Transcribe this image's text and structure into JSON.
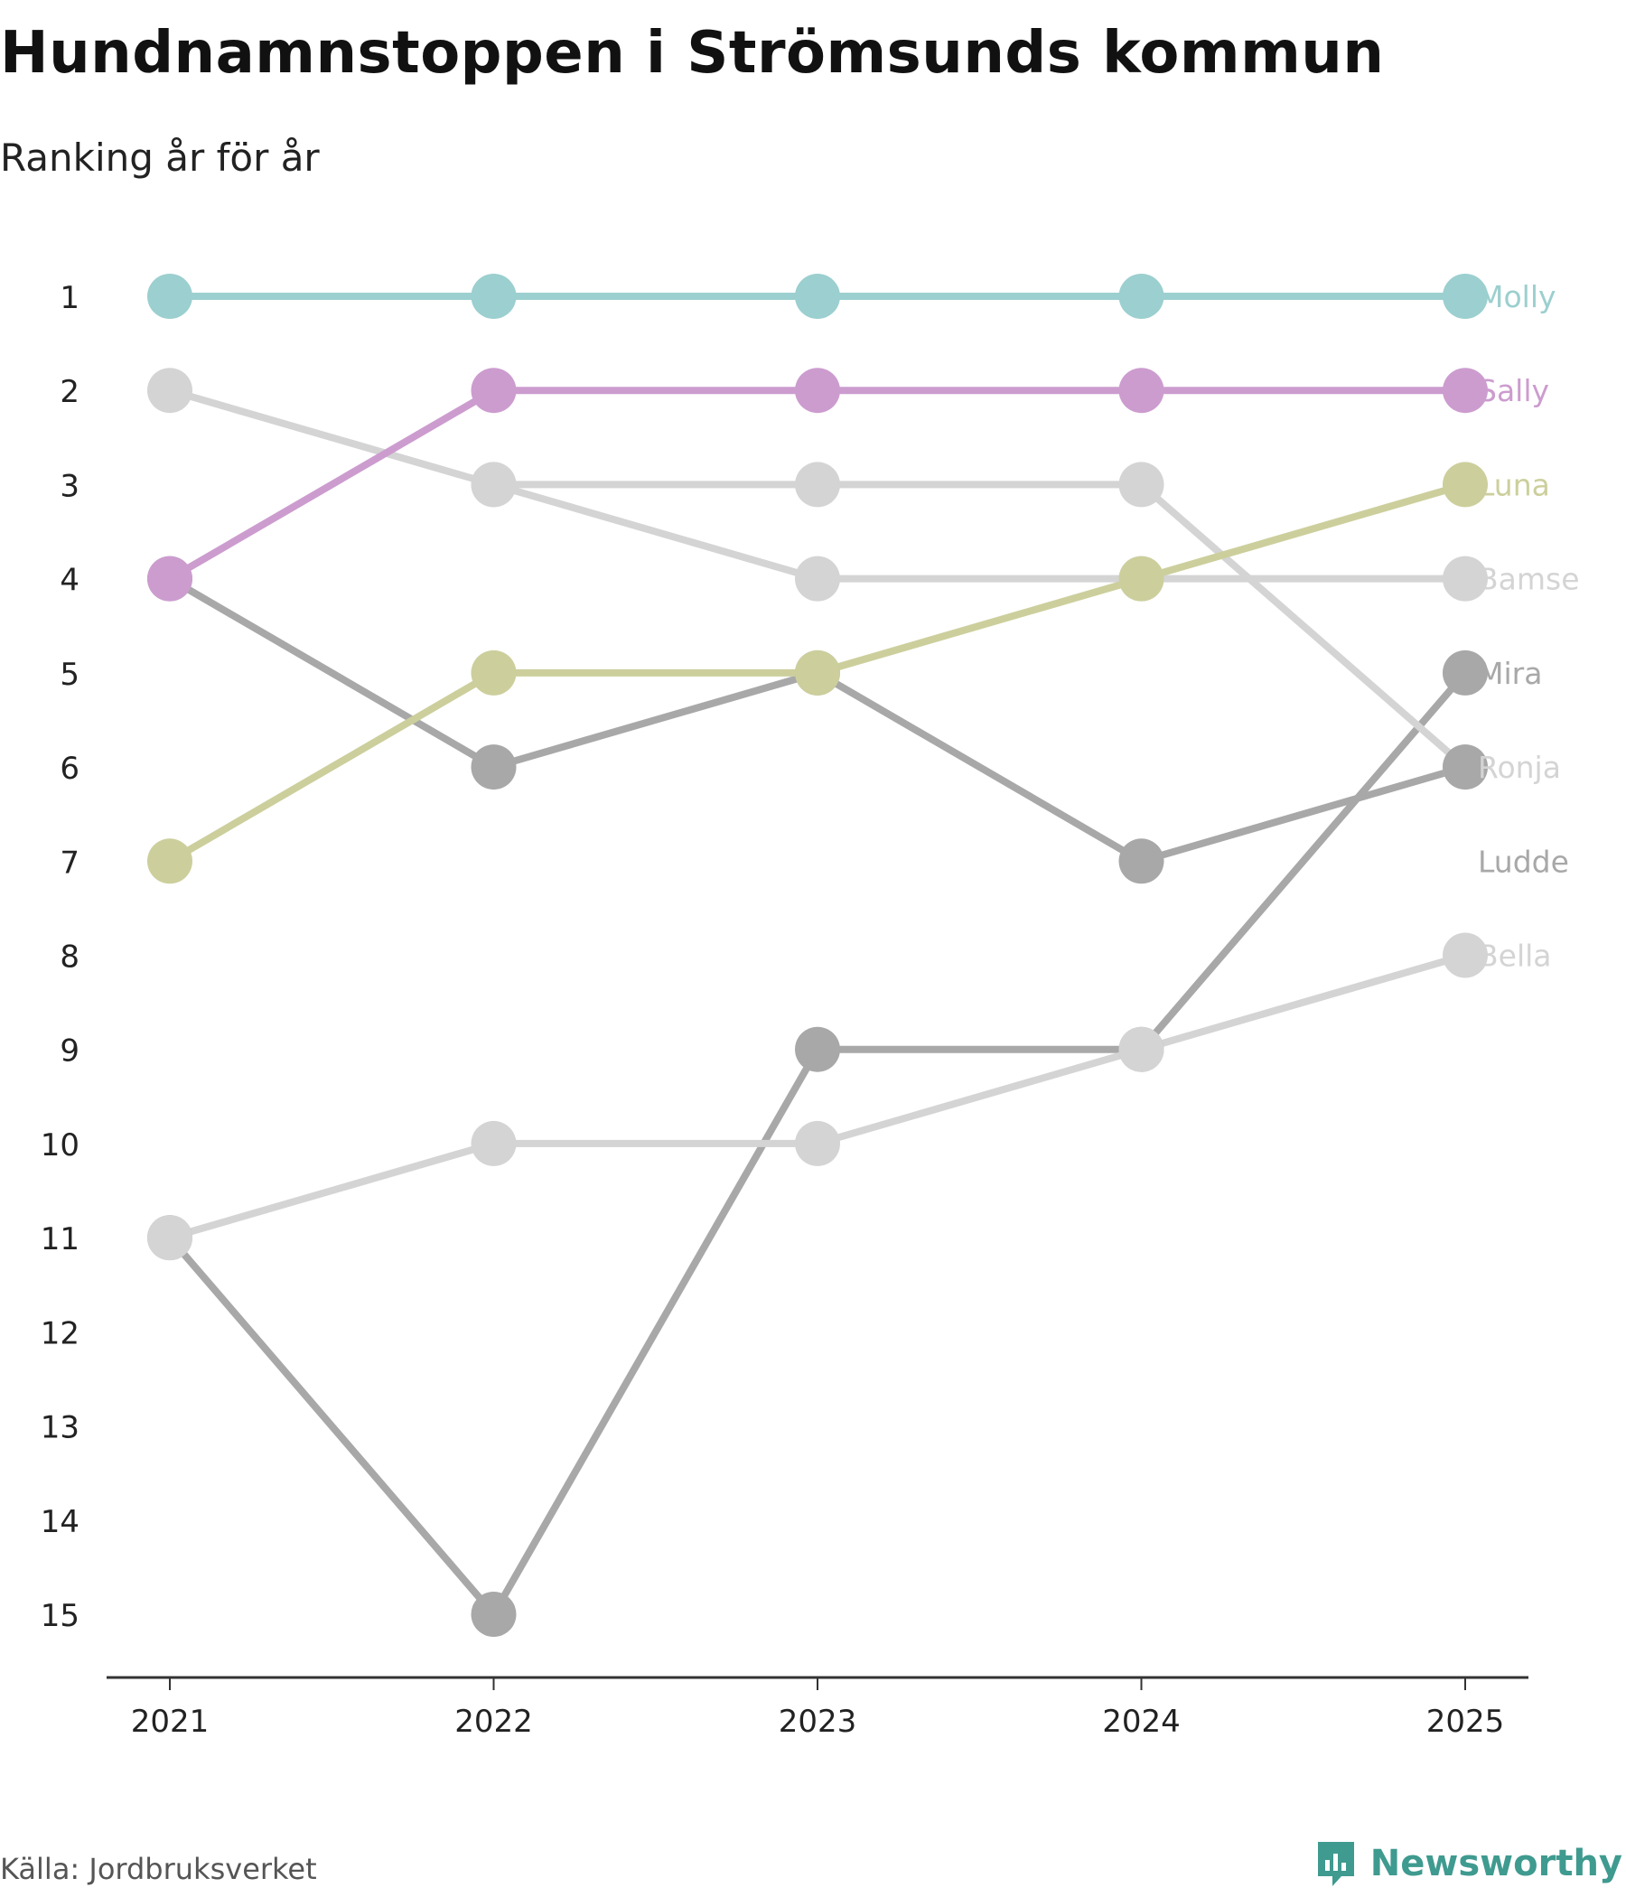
{
  "title": "Hundnamnstoppen i Strömsunds kommun",
  "subtitle": "Ranking år för år",
  "source": "Källa: Jordbruksverket",
  "brand": {
    "name": "Newsworthy",
    "icon": "chart-bubble-icon",
    "color": "#3f9a8f"
  },
  "chart_data": {
    "type": "line",
    "title": "Hundnamnstoppen i Strömsunds kommun",
    "subtitle": "Ranking år för år",
    "categories": [
      "2021",
      "2022",
      "2023",
      "2024",
      "2025"
    ],
    "y_ticks": [
      "1",
      "2",
      "3",
      "4",
      "5",
      "6",
      "7",
      "8",
      "9",
      "10",
      "11",
      "12",
      "13",
      "14",
      "15"
    ],
    "ylim": [
      1,
      15
    ],
    "y_reversed": true,
    "series": [
      {
        "name": "Molly",
        "color": "#9ccfcf",
        "values": [
          1,
          1,
          1,
          1,
          1
        ]
      },
      {
        "name": "Sally",
        "color": "#cc9ccf",
        "values": [
          4,
          2,
          2,
          2,
          2
        ]
      },
      {
        "name": "Luna",
        "color": "#cccf9c",
        "values": [
          7,
          5,
          5,
          4,
          3
        ]
      },
      {
        "name": "Bamse",
        "color": "#d4d4d4",
        "values": [
          2,
          3,
          4,
          4,
          4
        ]
      },
      {
        "name": "Mira",
        "color": "#a8a8a8",
        "values": [
          11,
          15,
          9,
          9,
          5
        ]
      },
      {
        "name": "Ronja",
        "color": "#d4d4d4",
        "values": [
          null,
          3,
          3,
          3,
          6
        ]
      },
      {
        "name": "Ludde",
        "color": "#a8a8a8",
        "values": [
          4,
          6,
          5,
          7,
          6
        ]
      },
      {
        "name": "Bella",
        "color": "#d4d4d4",
        "values": [
          11,
          10,
          10,
          9,
          8
        ]
      }
    ]
  }
}
